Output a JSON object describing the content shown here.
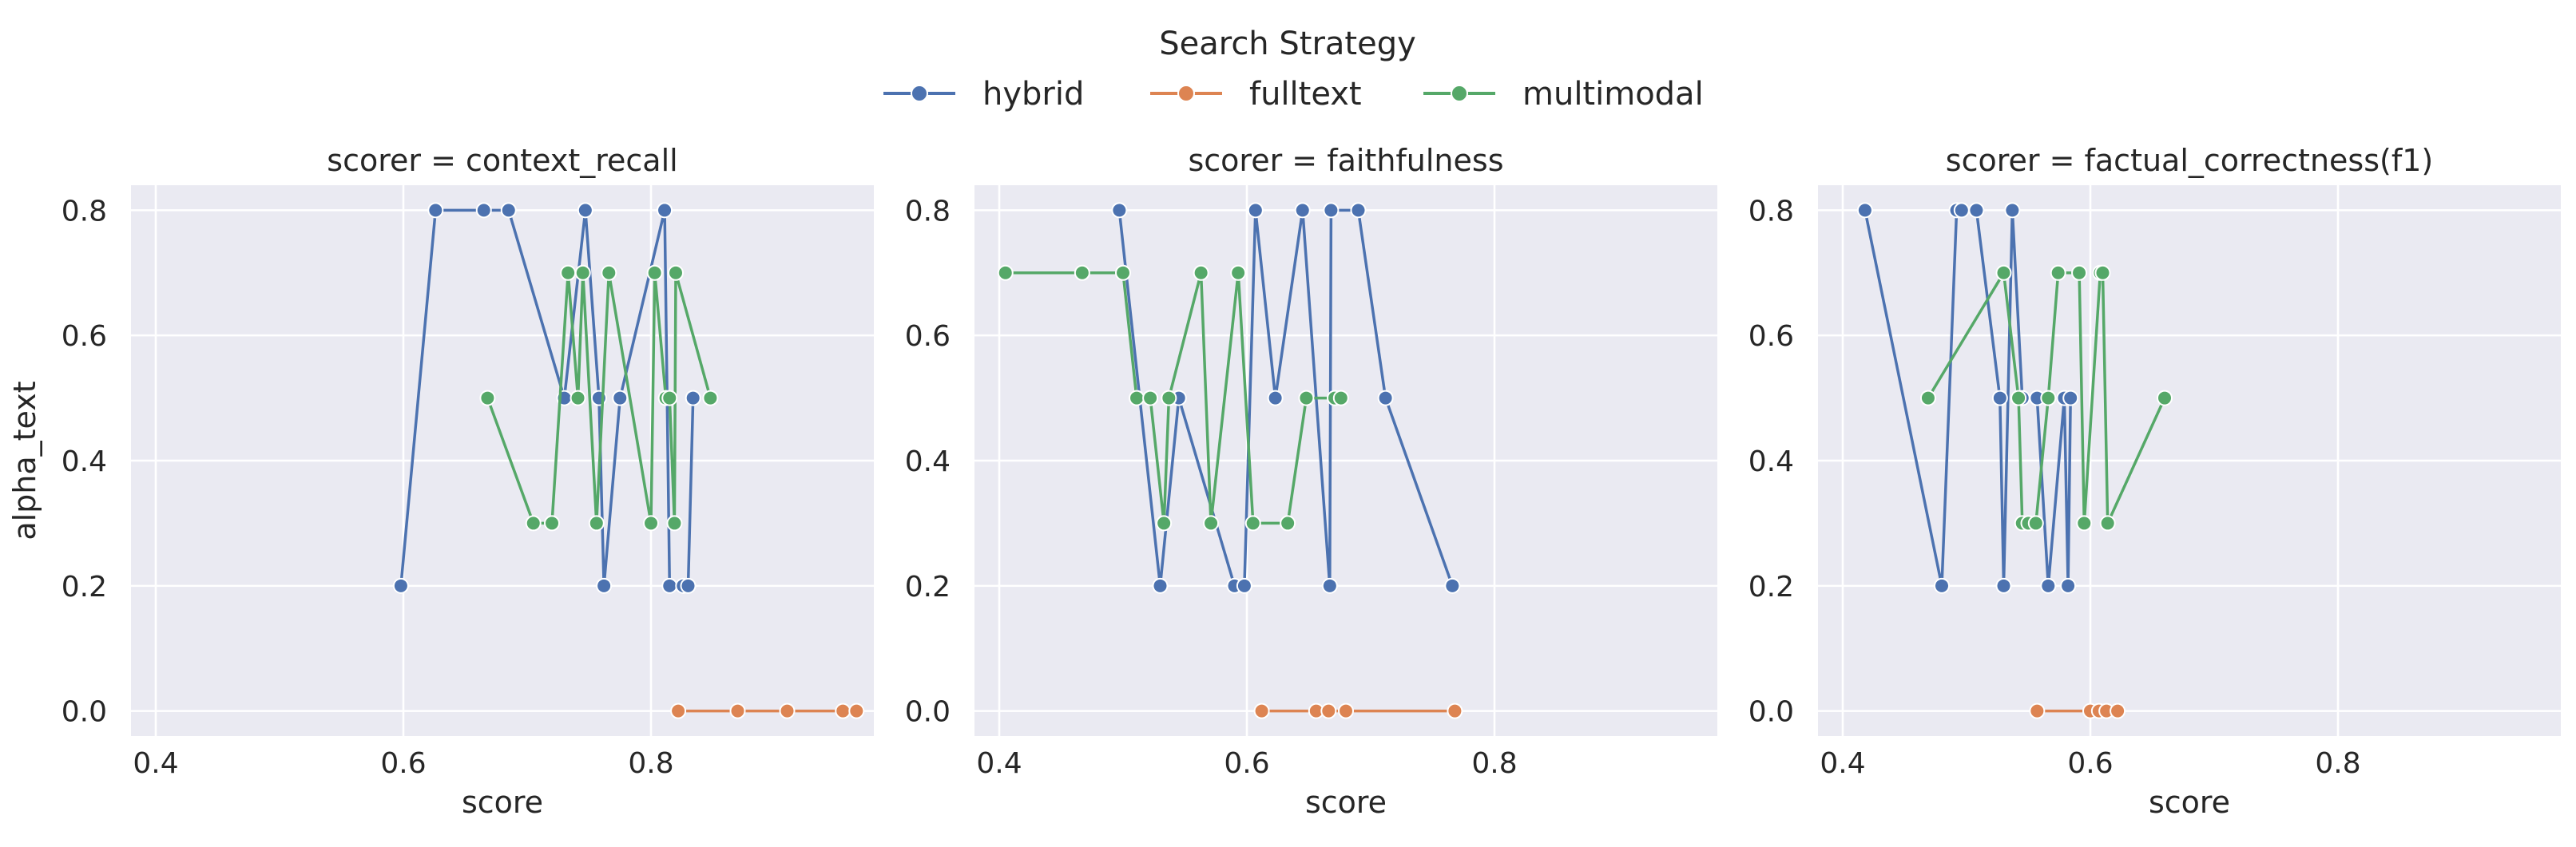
{
  "legend": {
    "title": "Search Strategy",
    "entries": [
      "hybrid",
      "fulltext",
      "multimodal"
    ]
  },
  "colors": {
    "hybrid": "#4c72b0",
    "fulltext": "#dd8452",
    "multimodal": "#55a868",
    "panel_bg": "#eaeaf2",
    "grid": "#ffffff"
  },
  "chart_data": [
    {
      "type": "line",
      "title": "scorer = context_recall",
      "xlabel": "score",
      "ylabel": "alpha_text",
      "xlim": [
        0.38,
        0.98
      ],
      "ylim": [
        -0.04,
        0.84
      ],
      "xticks": [
        "0.4",
        "0.6",
        "0.8"
      ],
      "yticks": [
        "0.0",
        "0.2",
        "0.4",
        "0.6",
        "0.8"
      ],
      "grid": true,
      "series": [
        {
          "name": "hybrid",
          "x": [
            0.598,
            0.626,
            0.665,
            0.685,
            0.73,
            0.747,
            0.758,
            0.762,
            0.775,
            0.811,
            0.815,
            0.826,
            0.83,
            0.834
          ],
          "y": [
            0.2,
            0.8,
            0.8,
            0.8,
            0.5,
            0.8,
            0.5,
            0.2,
            0.5,
            0.8,
            0.2,
            0.2,
            0.2,
            0.5
          ]
        },
        {
          "name": "fulltext",
          "x": [
            0.822,
            0.87,
            0.91,
            0.955,
            0.966
          ],
          "y": [
            0.0,
            0.0,
            0.0,
            0.0,
            0.0
          ]
        },
        {
          "name": "multimodal",
          "x": [
            0.668,
            0.705,
            0.72,
            0.733,
            0.741,
            0.745,
            0.756,
            0.766,
            0.8,
            0.803,
            0.812,
            0.815,
            0.819,
            0.82,
            0.848
          ],
          "y": [
            0.5,
            0.3,
            0.3,
            0.7,
            0.5,
            0.7,
            0.3,
            0.7,
            0.3,
            0.7,
            0.5,
            0.5,
            0.3,
            0.7,
            0.5
          ]
        }
      ]
    },
    {
      "type": "line",
      "title": "scorer = faithfulness",
      "xlabel": "score",
      "ylabel": "",
      "xlim": [
        0.38,
        0.98
      ],
      "ylim": [
        -0.04,
        0.84
      ],
      "xticks": [
        "0.4",
        "0.6",
        "0.8"
      ],
      "yticks": [
        "0.0",
        "0.2",
        "0.4",
        "0.6",
        "0.8"
      ],
      "grid": true,
      "series": [
        {
          "name": "hybrid",
          "x": [
            0.497,
            0.53,
            0.545,
            0.59,
            0.598,
            0.607,
            0.623,
            0.645,
            0.667,
            0.668,
            0.69,
            0.712,
            0.766
          ],
          "y": [
            0.8,
            0.2,
            0.5,
            0.2,
            0.2,
            0.8,
            0.5,
            0.8,
            0.2,
            0.8,
            0.8,
            0.5,
            0.2
          ]
        },
        {
          "name": "fulltext",
          "x": [
            0.612,
            0.656,
            0.666,
            0.68,
            0.768
          ],
          "y": [
            0.0,
            0.0,
            0.0,
            0.0,
            0.0
          ]
        },
        {
          "name": "multimodal",
          "x": [
            0.405,
            0.467,
            0.5,
            0.511,
            0.522,
            0.533,
            0.537,
            0.563,
            0.571,
            0.593,
            0.605,
            0.633,
            0.648,
            0.671,
            0.676
          ],
          "y": [
            0.7,
            0.7,
            0.7,
            0.5,
            0.5,
            0.3,
            0.5,
            0.7,
            0.3,
            0.7,
            0.3,
            0.3,
            0.5,
            0.5,
            0.5
          ]
        }
      ]
    },
    {
      "type": "line",
      "title": "scorer = factual_correctness(f1)",
      "xlabel": "score",
      "ylabel": "",
      "xlim": [
        0.38,
        0.98
      ],
      "ylim": [
        -0.04,
        0.84
      ],
      "xticks": [
        "0.4",
        "0.6",
        "0.8"
      ],
      "yticks": [
        "0.0",
        "0.2",
        "0.4",
        "0.6",
        "0.8"
      ],
      "grid": true,
      "series": [
        {
          "name": "hybrid",
          "x": [
            0.418,
            0.48,
            0.492,
            0.496,
            0.508,
            0.527,
            0.53,
            0.537,
            0.545,
            0.557,
            0.566,
            0.579,
            0.582,
            0.584
          ],
          "y": [
            0.8,
            0.2,
            0.8,
            0.8,
            0.8,
            0.5,
            0.2,
            0.8,
            0.5,
            0.5,
            0.2,
            0.5,
            0.2,
            0.5
          ]
        },
        {
          "name": "fulltext",
          "x": [
            0.557,
            0.6,
            0.607,
            0.613,
            0.622
          ],
          "y": [
            0.0,
            0.0,
            0.0,
            0.0,
            0.0
          ]
        },
        {
          "name": "multimodal",
          "x": [
            0.469,
            0.53,
            0.542,
            0.545,
            0.55,
            0.556,
            0.566,
            0.574,
            0.591,
            0.595,
            0.608,
            0.61,
            0.614,
            0.66
          ],
          "y": [
            0.5,
            0.7,
            0.5,
            0.3,
            0.3,
            0.3,
            0.5,
            0.7,
            0.7,
            0.3,
            0.7,
            0.7,
            0.3,
            0.5
          ]
        }
      ]
    }
  ]
}
